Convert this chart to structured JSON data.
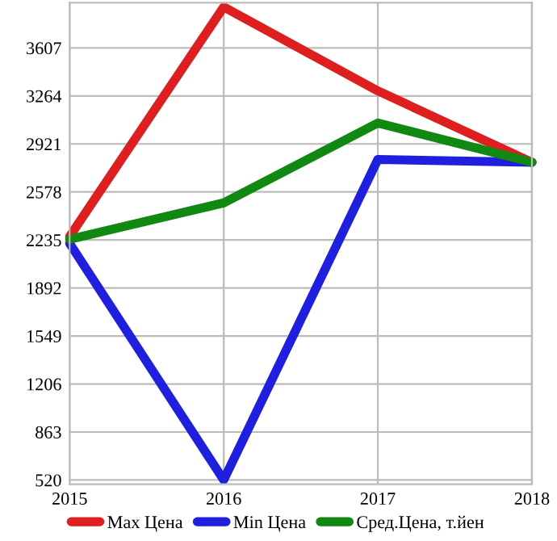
{
  "chart_data": {
    "type": "line",
    "x": [
      2015,
      2016,
      2017,
      2018
    ],
    "series": [
      {
        "name": "Max Цена",
        "color": "#dd1f1f",
        "values": [
          2260,
          3900,
          3300,
          2790
        ]
      },
      {
        "name": "Min Цена",
        "color": "#1f1fdd",
        "values": [
          2210,
          520,
          2810,
          2790
        ]
      },
      {
        "name": "Сред.Цена, т.йен",
        "color": "#118811",
        "values": [
          2240,
          2500,
          3070,
          2790
        ]
      }
    ],
    "xlim": [
      2015,
      2018
    ],
    "xticks": [
      2015,
      2016,
      2017,
      2018
    ],
    "ylim": [
      490,
      3930
    ],
    "yticks": [
      520,
      863,
      1206,
      1549,
      1892,
      2235,
      2578,
      2921,
      3264,
      3607
    ],
    "grid": true,
    "legend": "bottom",
    "marker": "none",
    "line_style": "solid"
  }
}
